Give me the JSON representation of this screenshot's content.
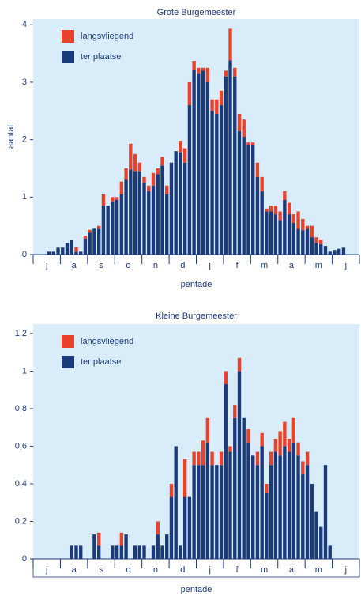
{
  "chart_data": [
    {
      "type": "bar",
      "stacked": true,
      "title": "Grote Burgemeester",
      "x_label": "pentade",
      "y_label": "aantal",
      "categories": [
        null,
        null,
        "j",
        null,
        null,
        null,
        null,
        null,
        "a",
        null,
        null,
        null,
        null,
        null,
        "s",
        null,
        null,
        null,
        null,
        null,
        "o",
        null,
        null,
        null,
        null,
        null,
        "n",
        null,
        null,
        null,
        null,
        null,
        "d",
        null,
        null,
        null,
        null,
        null,
        "j",
        null,
        null,
        null,
        null,
        null,
        "f",
        null,
        null,
        null,
        null,
        null,
        "m",
        null,
        null,
        null,
        null,
        null,
        "a",
        null,
        null,
        null,
        null,
        null,
        "m",
        null,
        null,
        null,
        null,
        null,
        "j",
        null,
        null,
        null
      ],
      "series": [
        {
          "name": "ter plaatse",
          "color": "#1b3a7a",
          "values": [
            0,
            0,
            0,
            0.05,
            0.05,
            0.12,
            0.12,
            0.2,
            0.25,
            0.05,
            0.05,
            0.28,
            0.38,
            0.45,
            0.45,
            0.85,
            0.85,
            0.92,
            0.95,
            1.05,
            1.3,
            1.48,
            1.45,
            1.45,
            1.25,
            1.1,
            1.2,
            1.4,
            1.55,
            1.05,
            1.6,
            1.8,
            1.78,
            1.6,
            2.6,
            3.22,
            3.15,
            3.2,
            3.0,
            2.5,
            2.45,
            2.6,
            3.1,
            3.38,
            3.1,
            2.15,
            2.05,
            1.9,
            1.9,
            1.35,
            1.1,
            0.75,
            0.75,
            0.7,
            0.6,
            0.95,
            0.7,
            0.55,
            0.45,
            0.42,
            0.45,
            0.3,
            0.2,
            0.18,
            0.15,
            0.05,
            0.08,
            0.1,
            0.12,
            0,
            0,
            0
          ]
        },
        {
          "name": "langsvliegend",
          "color": "#e8412c",
          "values": [
            0,
            0,
            0,
            0,
            0,
            0,
            0,
            0,
            0,
            0.08,
            0,
            0.05,
            0.05,
            0,
            0.05,
            0.2,
            0,
            0.08,
            0.05,
            0.22,
            0.2,
            0.45,
            0.3,
            0.15,
            0.1,
            0.1,
            0.22,
            0.1,
            0.15,
            0.15,
            0,
            0,
            0.2,
            0.25,
            0.4,
            0.15,
            0.1,
            0.05,
            0.25,
            0.2,
            0.25,
            0.25,
            0.1,
            0.55,
            0.15,
            0.3,
            0.3,
            0.05,
            0.05,
            0.25,
            0.25,
            0.05,
            0.1,
            0.15,
            0.15,
            0.15,
            0.2,
            0.15,
            0.3,
            0.2,
            0.05,
            0.2,
            0.1,
            0.08,
            0,
            0,
            0,
            0,
            0,
            0,
            0,
            0
          ]
        }
      ],
      "ylim": [
        0,
        4.1
      ],
      "yticks": [
        0,
        1,
        2,
        3,
        4
      ]
    },
    {
      "type": "bar",
      "stacked": true,
      "title": "Kleine Burgemeester",
      "x_label": "pentade",
      "categories": [
        null,
        null,
        "j",
        null,
        null,
        null,
        null,
        null,
        "a",
        null,
        null,
        null,
        null,
        null,
        "s",
        null,
        null,
        null,
        null,
        null,
        "o",
        null,
        null,
        null,
        null,
        null,
        "n",
        null,
        null,
        null,
        null,
        null,
        "d",
        null,
        null,
        null,
        null,
        null,
        "j",
        null,
        null,
        null,
        null,
        null,
        "f",
        null,
        null,
        null,
        null,
        null,
        "m",
        null,
        null,
        null,
        null,
        null,
        "a",
        null,
        null,
        null,
        null,
        null,
        "m",
        null,
        null,
        null,
        null,
        null,
        "j",
        null,
        null,
        null
      ],
      "series": [
        {
          "name": "ter plaatse",
          "color": "#1b3a7a",
          "values": [
            0,
            0,
            0,
            0,
            0,
            0,
            0,
            0,
            0.07,
            0.07,
            0.07,
            0,
            0,
            0.13,
            0.07,
            0,
            0,
            0.07,
            0.07,
            0.07,
            0.13,
            0,
            0.07,
            0.07,
            0.07,
            0,
            0.07,
            0.13,
            0.07,
            0.13,
            0.33,
            0.6,
            0.07,
            0.33,
            0.33,
            0.5,
            0.5,
            0.5,
            0.62,
            0.5,
            0.5,
            0.5,
            0.93,
            0.57,
            0.75,
            1.0,
            0.75,
            0.62,
            0.55,
            0.5,
            0.6,
            0.35,
            0.5,
            0.57,
            0.55,
            0.6,
            0.57,
            0.62,
            0.55,
            0.45,
            0.5,
            0.4,
            0.25,
            0.17,
            0.5,
            0.07,
            0,
            0,
            0,
            0,
            0,
            0
          ]
        },
        {
          "name": "langsvliegend",
          "color": "#e8412c",
          "values": [
            0,
            0,
            0,
            0,
            0,
            0,
            0,
            0,
            0,
            0,
            0,
            0,
            0,
            0,
            0.07,
            0,
            0,
            0,
            0,
            0.07,
            0,
            0,
            0,
            0,
            0,
            0,
            0,
            0.07,
            0,
            0,
            0.07,
            0,
            0,
            0.2,
            0,
            0.07,
            0.07,
            0.13,
            0.13,
            0.07,
            0,
            0.07,
            0.07,
            0.03,
            0.07,
            0.07,
            0,
            0.07,
            0,
            0.07,
            0.07,
            0.05,
            0.07,
            0.07,
            0.13,
            0.13,
            0.07,
            0.13,
            0.07,
            0.07,
            0.07,
            0,
            0,
            0,
            0,
            0,
            0,
            0,
            0,
            0,
            0,
            0
          ]
        }
      ],
      "ylim": [
        0,
        1.25
      ],
      "yticks": [
        0,
        {
          "value": 0.2,
          "label": "0,2"
        },
        {
          "value": 0.4,
          "label": "0,4"
        },
        {
          "value": 0.6,
          "label": "0,6"
        },
        {
          "value": 0.8,
          "label": "0,8"
        },
        1,
        {
          "value": 1.2,
          "label": "1,2"
        }
      ]
    }
  ]
}
